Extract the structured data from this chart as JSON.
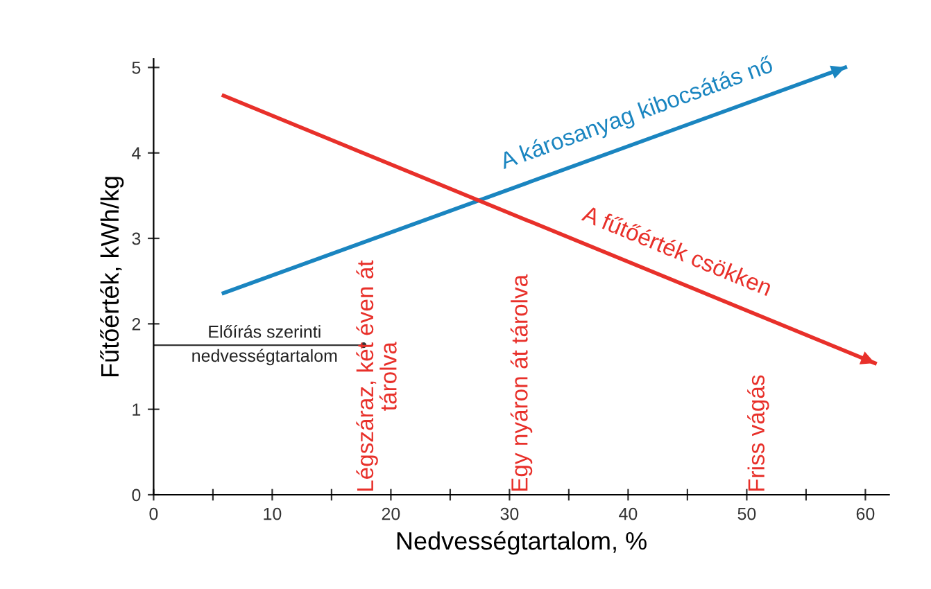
{
  "chart_data": {
    "type": "line",
    "xlabel": "Nedvességtartalom, %",
    "ylabel": "Fűtőérték, kWh/kg",
    "series": [
      {
        "name": "A károsanyag kibocsátás nő",
        "color": "#1a85c0",
        "x": [
          5.9,
          58.3
        ],
        "values": [
          2.36,
          5.0
        ]
      },
      {
        "name": "A fűtőérték csökken",
        "color": "#e8302a",
        "x": [
          5.9,
          60.8
        ],
        "values": [
          4.67,
          1.54
        ]
      }
    ],
    "xlim": [
      0,
      62
    ],
    "ylim": [
      0,
      5.1
    ],
    "xticks": [
      0,
      {
        "value": 5,
        "label": null
      },
      10,
      {
        "value": 15,
        "label": null
      },
      20,
      {
        "value": 25,
        "label": null
      },
      30,
      {
        "value": 35,
        "label": null
      },
      40,
      {
        "value": 45,
        "label": null
      },
      50,
      {
        "value": 55,
        "label": null
      },
      60
    ],
    "yticks": [
      0,
      1,
      2,
      3,
      4,
      5
    ],
    "grid": false,
    "legend": false,
    "marker": "none",
    "line_style": "solid",
    "annotations": [
      "Légszáraz, két éven át\ntárolva",
      "Egy nyáron át tárolva",
      "Friss vágás",
      {
        "text": "Előírás szerinti\nnedvességtartalom",
        "x": 17.7,
        "y": 1.75
      }
    ]
  }
}
